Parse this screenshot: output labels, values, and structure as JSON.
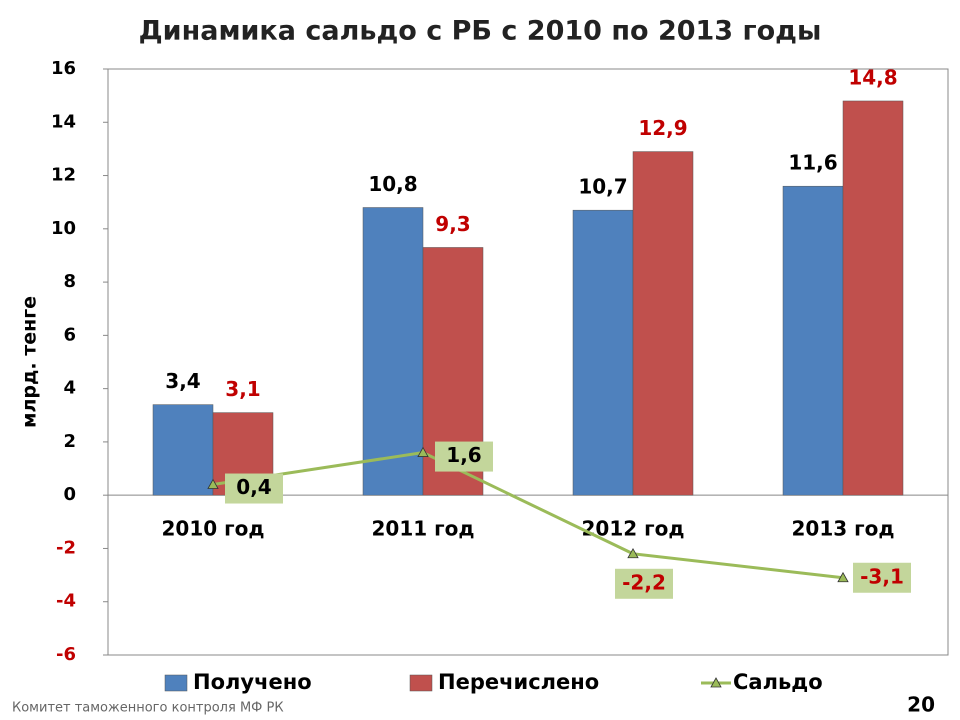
{
  "chart_data": {
    "type": "bar_line",
    "title": "Динамика сальдо с РБ с 2010 по 2013 годы",
    "y_label": "млрд. тенге",
    "categories": [
      "2010 год",
      "2011 год",
      "2012 год",
      "2013 год"
    ],
    "series": [
      {
        "name": "Получено",
        "type": "bar",
        "color": "#4f81bd",
        "label_color": "#000000",
        "values": [
          3.4,
          10.8,
          10.7,
          11.6
        ],
        "value_labels": [
          "3,4",
          "10,8",
          "10,7",
          "11,6"
        ]
      },
      {
        "name": "Перечислено",
        "type": "bar",
        "color": "#c0504d",
        "label_color": "#c00000",
        "values": [
          3.1,
          9.3,
          12.9,
          14.8
        ],
        "value_labels": [
          "3,1",
          "9,3",
          "12,9",
          "14,8"
        ]
      },
      {
        "name": "Сальдо",
        "type": "line",
        "color": "#9bbb59",
        "label_color": "#000000",
        "values": [
          0.4,
          1.6,
          -2.2,
          -3.1
        ],
        "value_labels": [
          "0,4",
          "1,6",
          "-2,2",
          "-3,1"
        ]
      }
    ],
    "ylim": [
      -6,
      16
    ],
    "yticks": [
      -6,
      -4,
      -2,
      0,
      2,
      4,
      6,
      8,
      10,
      12,
      14,
      16
    ],
    "negative_color": "#c00000",
    "grid": false,
    "legend": "bottom"
  },
  "footer": {
    "left": "Комитет таможенного контроля МФ РК",
    "page": "20"
  }
}
